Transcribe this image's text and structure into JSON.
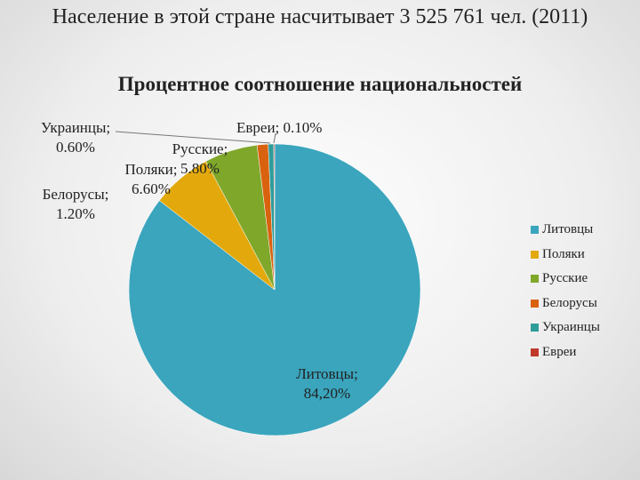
{
  "chart_data": {
    "type": "pie",
    "title": "Население в этой стране насчитывает 3 525 761 чел. (2011)",
    "subtitle": "Процентное соотношение национальностей",
    "categories": [
      "Литовцы",
      "Поляки",
      "Русские",
      "Белорусы",
      "Украинцы",
      "Евреи"
    ],
    "values": [
      84.2,
      6.6,
      5.8,
      1.2,
      0.6,
      0.1
    ],
    "value_labels": [
      "Литовцы; 84,20%",
      "Поляки; 6.60%",
      "Русские; 5.80%",
      "Белорусы; 1.20%",
      "Украинцы; 0.60%",
      "Евреи; 0.10%"
    ],
    "colors": [
      "#3aa5bd",
      "#e3a90c",
      "#7fa72a",
      "#d9620f",
      "#2e9d9a",
      "#c0392b"
    ],
    "legend": "right"
  }
}
